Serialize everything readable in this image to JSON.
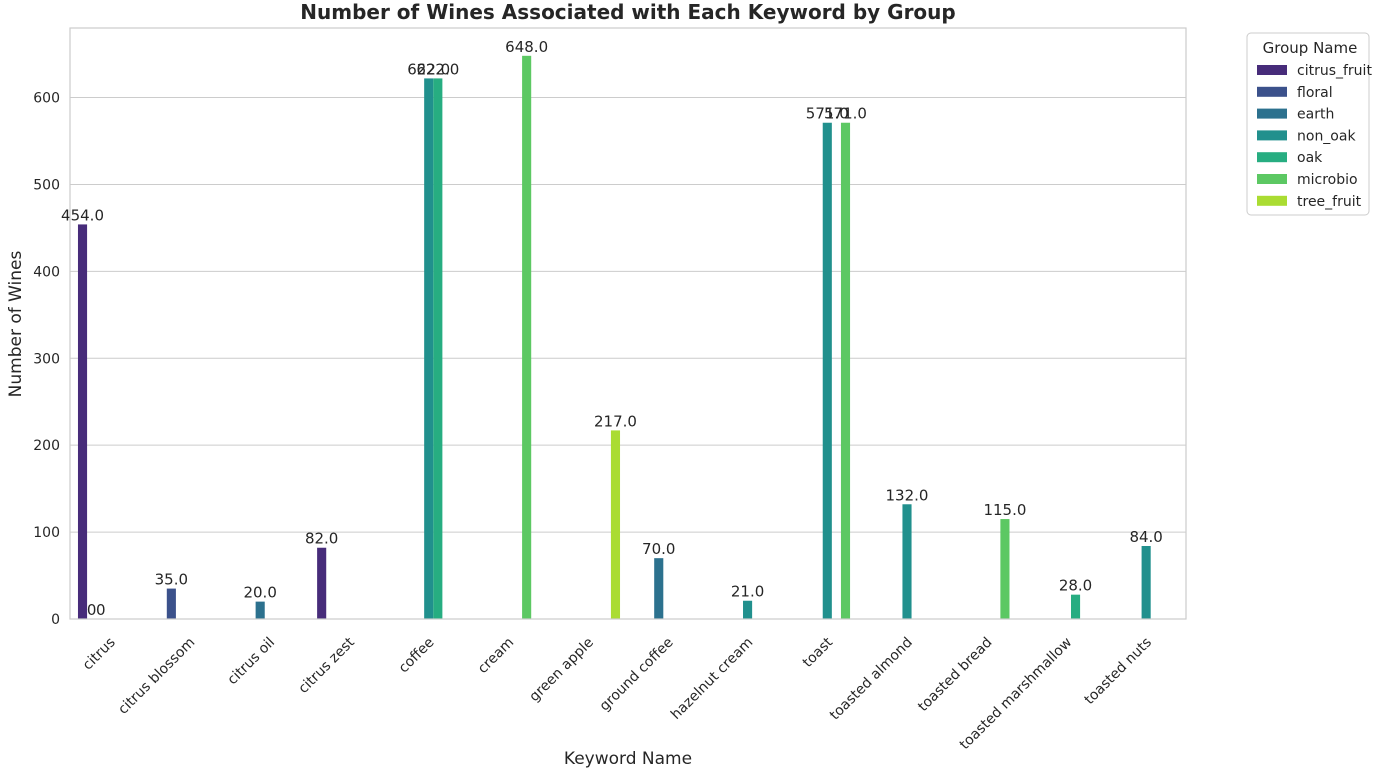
{
  "chart_data": {
    "type": "bar",
    "title": "Number of Wines Associated with Each Keyword by Group",
    "xlabel": "Keyword Name",
    "ylabel": "Number of Wines",
    "ylim": [
      0,
      680
    ],
    "yticks": [
      0,
      100,
      200,
      300,
      400,
      500,
      600
    ],
    "grid": true,
    "legend": {
      "title": "Group Name",
      "placement": "outside-top-right"
    },
    "categories": [
      "citrus",
      "citrus blossom",
      "citrus oil",
      "citrus zest",
      "coffee",
      "cream",
      "green apple",
      "ground coffee",
      "hazelnut cream",
      "toast",
      "toasted almond",
      "toasted bread",
      "toasted marshmallow",
      "toasted nuts"
    ],
    "series": [
      {
        "name": "citrus_fruit",
        "color": "#472c7a",
        "values": [
          454,
          null,
          null,
          82,
          null,
          null,
          null,
          null,
          null,
          null,
          null,
          null,
          null,
          null
        ]
      },
      {
        "name": "floral",
        "color": "#3b518b",
        "values": [
          0,
          35,
          null,
          null,
          null,
          null,
          null,
          null,
          null,
          null,
          null,
          null,
          null,
          null
        ]
      },
      {
        "name": "earth",
        "color": "#2c718e",
        "values": [
          0,
          null,
          20,
          null,
          null,
          null,
          null,
          70,
          null,
          null,
          null,
          null,
          null,
          null
        ]
      },
      {
        "name": "non_oak",
        "color": "#21908d",
        "values": [
          null,
          null,
          null,
          null,
          622,
          null,
          null,
          null,
          21,
          571,
          132,
          null,
          null,
          84
        ]
      },
      {
        "name": "oak",
        "color": "#27ad81",
        "values": [
          null,
          null,
          null,
          null,
          622,
          null,
          null,
          null,
          null,
          null,
          null,
          null,
          28,
          null
        ]
      },
      {
        "name": "microbio",
        "color": "#5cc863",
        "values": [
          null,
          null,
          null,
          null,
          null,
          648,
          null,
          null,
          null,
          571,
          null,
          115,
          null,
          null
        ]
      },
      {
        "name": "tree_fruit",
        "color": "#aadc32",
        "values": [
          null,
          null,
          null,
          null,
          null,
          null,
          217,
          null,
          null,
          null,
          null,
          null,
          null,
          null
        ]
      }
    ],
    "data_labels": [
      {
        "category": "citrus",
        "series": "citrus_fruit",
        "text": "454.0"
      },
      {
        "category": "citrus",
        "series": "floral",
        "text": "0"
      },
      {
        "category": "citrus",
        "series": "earth",
        "text": "0"
      },
      {
        "category": "citrus blossom",
        "series": "floral",
        "text": "35.0"
      },
      {
        "category": "citrus oil",
        "series": "earth",
        "text": "20.0"
      },
      {
        "category": "citrus zest",
        "series": "citrus_fruit",
        "text": "82.0"
      },
      {
        "category": "coffee",
        "series": "non_oak",
        "text": "622.0"
      },
      {
        "category": "coffee",
        "series": "oak",
        "text": "622.0"
      },
      {
        "category": "cream",
        "series": "microbio",
        "text": "648.0"
      },
      {
        "category": "green apple",
        "series": "tree_fruit",
        "text": "217.0"
      },
      {
        "category": "ground coffee",
        "series": "earth",
        "text": "70.0"
      },
      {
        "category": "hazelnut cream",
        "series": "non_oak",
        "text": "21.0"
      },
      {
        "category": "toast",
        "series": "non_oak",
        "text": "571.0"
      },
      {
        "category": "toast",
        "series": "microbio",
        "text": "571.0"
      },
      {
        "category": "toasted almond",
        "series": "non_oak",
        "text": "132.0"
      },
      {
        "category": "toasted bread",
        "series": "microbio",
        "text": "115.0"
      },
      {
        "category": "toasted marshmallow",
        "series": "oak",
        "text": "28.0"
      },
      {
        "category": "toasted nuts",
        "series": "non_oak",
        "text": "84.0"
      }
    ]
  }
}
